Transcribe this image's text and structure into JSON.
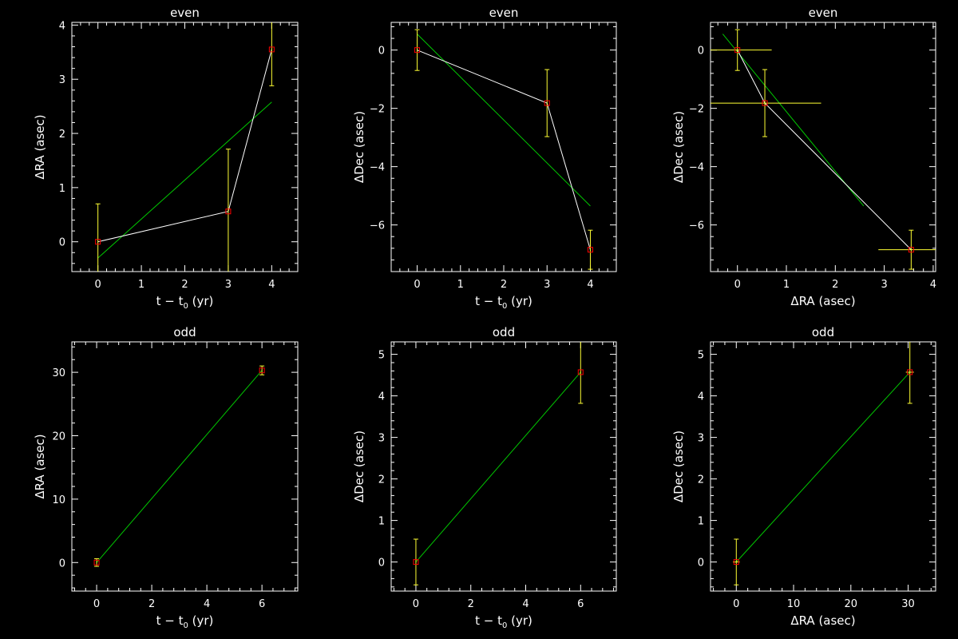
{
  "colors": {
    "background": "#000000",
    "axes": "#ffffff",
    "data_line": "#ffffff",
    "fit_line": "#00c800",
    "error_bar": "#ffff33",
    "marker": "#ff0000"
  },
  "chart_data": [
    {
      "type": "scatter",
      "title": "even",
      "xlabel": "t − t",
      "xlabel_sub": "0",
      "xlabel_suffix": " (yr)",
      "ylabel": "ΔRA (asec)",
      "xlim": [
        -0.6,
        4.6
      ],
      "ylim": [
        -0.55,
        4.05
      ],
      "xticks": [
        0,
        1,
        2,
        3,
        4
      ],
      "yticks": [
        0,
        1,
        2,
        3,
        4
      ],
      "points": [
        {
          "x": 0,
          "y": 0,
          "yerr": 0.7
        },
        {
          "x": 3,
          "y": 0.56,
          "yerr": 1.15
        },
        {
          "x": 4,
          "y": 3.55,
          "yerr": 0.67
        }
      ],
      "connect_points": true,
      "fit": {
        "x": [
          0,
          4
        ],
        "y": [
          -0.3,
          2.58
        ]
      }
    },
    {
      "type": "scatter",
      "title": "even",
      "xlabel": "t − t",
      "xlabel_sub": "0",
      "xlabel_suffix": " (yr)",
      "ylabel": "ΔDec (asec)",
      "xlim": [
        -0.6,
        4.6
      ],
      "ylim": [
        -7.6,
        0.95
      ],
      "xticks": [
        0,
        1,
        2,
        3,
        4
      ],
      "yticks": [
        0,
        -2,
        -4,
        -6
      ],
      "points": [
        {
          "x": 0,
          "y": 0,
          "yerr": 0.7
        },
        {
          "x": 3,
          "y": -1.82,
          "yerr": 1.15
        },
        {
          "x": 4,
          "y": -6.85,
          "yerr": 0.67
        }
      ],
      "connect_points": true,
      "fit": {
        "x": [
          0,
          4
        ],
        "y": [
          0.55,
          -5.35
        ]
      }
    },
    {
      "type": "scatter",
      "title": "even",
      "xlabel": "ΔRA (asec)",
      "ylabel": "ΔDec (asec)",
      "xlim": [
        -0.55,
        4.05
      ],
      "ylim": [
        -7.6,
        0.95
      ],
      "xticks": [
        0,
        1,
        2,
        3,
        4
      ],
      "yticks": [
        0,
        -2,
        -4,
        -6
      ],
      "points": [
        {
          "x": 0,
          "y": 0,
          "xerr": 0.7,
          "yerr": 0.7
        },
        {
          "x": 0.56,
          "y": -1.82,
          "xerr": 1.15,
          "yerr": 1.15
        },
        {
          "x": 3.55,
          "y": -6.85,
          "xerr": 0.67,
          "yerr": 0.67
        }
      ],
      "connect_points": true,
      "fit": {
        "x": [
          -0.3,
          2.58
        ],
        "y": [
          0.55,
          -5.35
        ]
      }
    },
    {
      "type": "scatter",
      "title": "odd",
      "xlabel": "t − t",
      "xlabel_sub": "0",
      "xlabel_suffix": " (yr)",
      "ylabel": "ΔRA (asec)",
      "xlim": [
        -0.9,
        7.3
      ],
      "ylim": [
        -4.5,
        34.8
      ],
      "xticks": [
        0,
        2,
        4,
        6
      ],
      "yticks": [
        0,
        10,
        20,
        30
      ],
      "points": [
        {
          "x": 0,
          "y": 0,
          "yerr": 0.6
        },
        {
          "x": 6,
          "y": 30.3,
          "yerr": 0.7
        }
      ],
      "connect_points": false,
      "fit": {
        "x": [
          0,
          6
        ],
        "y": [
          0,
          30.3
        ]
      }
    },
    {
      "type": "scatter",
      "title": "odd",
      "xlabel": "t − t",
      "xlabel_sub": "0",
      "xlabel_suffix": " (yr)",
      "ylabel": "ΔDec (asec)",
      "xlim": [
        -0.9,
        7.3
      ],
      "ylim": [
        -0.7,
        5.3
      ],
      "xticks": [
        0,
        2,
        4,
        6
      ],
      "yticks": [
        0,
        1,
        2,
        3,
        4,
        5
      ],
      "points": [
        {
          "x": 0,
          "y": 0,
          "yerr": 0.55
        },
        {
          "x": 6,
          "y": 4.57,
          "yerr": 0.75
        }
      ],
      "connect_points": false,
      "fit": {
        "x": [
          0,
          6
        ],
        "y": [
          0,
          4.57
        ]
      }
    },
    {
      "type": "scatter",
      "title": "odd",
      "xlabel": "ΔRA (asec)",
      "ylabel": "ΔDec (asec)",
      "xlim": [
        -4.5,
        34.8
      ],
      "ylim": [
        -0.7,
        5.3
      ],
      "xticks": [
        0,
        10,
        20,
        30
      ],
      "yticks": [
        0,
        1,
        2,
        3,
        4,
        5
      ],
      "points": [
        {
          "x": 0,
          "y": 0,
          "xerr": 0.6,
          "yerr": 0.55
        },
        {
          "x": 30.3,
          "y": 4.57,
          "xerr": 0.7,
          "yerr": 0.75
        }
      ],
      "connect_points": false,
      "fit": {
        "x": [
          0,
          30.3
        ],
        "y": [
          0,
          4.57
        ]
      }
    }
  ]
}
